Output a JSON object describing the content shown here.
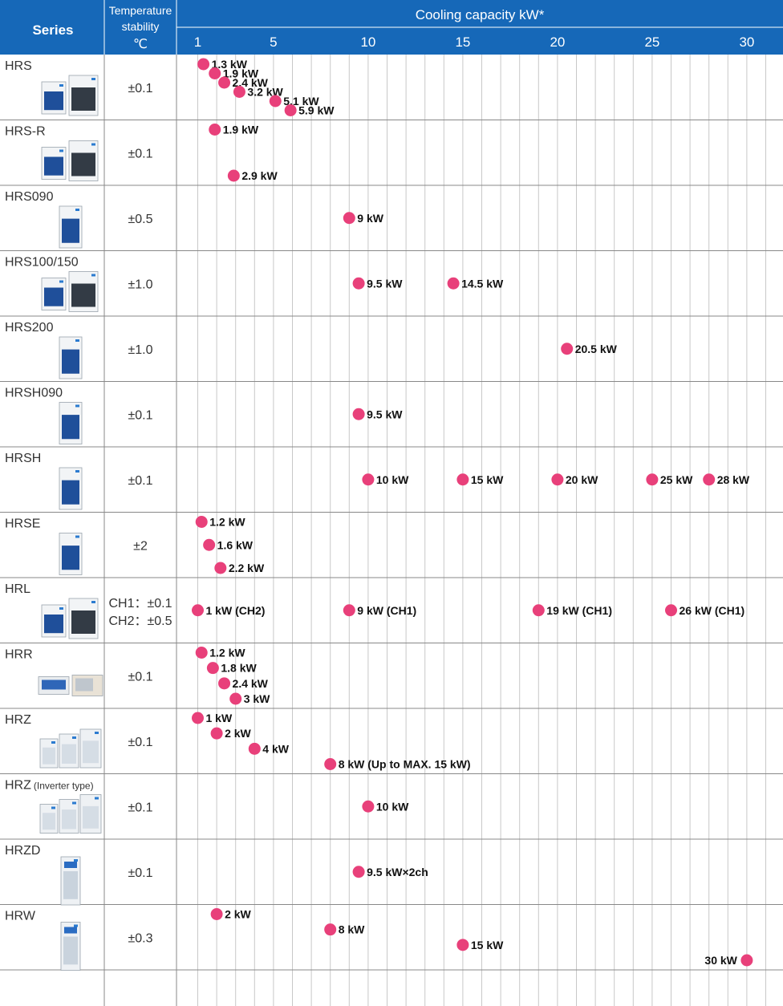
{
  "header": {
    "series_label": "Series",
    "stability_label_lines": [
      "Temperature",
      "stability",
      "℃"
    ],
    "capacity_label": "Cooling capacity   kW*"
  },
  "colors": {
    "header_bg": "#1668b8",
    "marker": "#e8407a",
    "grid": "#c8c8c8",
    "row_border": "#888888"
  },
  "chart_data": {
    "type": "scatter",
    "title": "Cooling capacity   kW*",
    "xlabel": "Cooling capacity   kW*",
    "ylabel": "Series",
    "x_ticks": [
      "1",
      "5",
      "10",
      "15",
      "20",
      "25",
      "30"
    ],
    "x_tick_values": [
      1,
      5,
      10,
      15,
      20,
      25,
      30
    ],
    "xlim": [
      0,
      32
    ],
    "rows": [
      {
        "series": "HRS",
        "stability": [
          "±0.1"
        ],
        "icon": "chiller-units-pair-icon",
        "points": [
          {
            "x": 1.3,
            "label": "1.3 kW"
          },
          {
            "x": 1.9,
            "label": "1.9 kW"
          },
          {
            "x": 2.4,
            "label": "2.4 kW"
          },
          {
            "x": 3.2,
            "label": "3.2 kW"
          },
          {
            "x": 5.1,
            "label": "5.1 kW"
          },
          {
            "x": 5.9,
            "label": "5.9 kW"
          }
        ]
      },
      {
        "series": "HRS-R",
        "stability": [
          "±0.1"
        ],
        "icon": "chiller-units-pair-icon",
        "points": [
          {
            "x": 1.9,
            "label": "1.9 kW"
          },
          {
            "x": 2.9,
            "label": "2.9 kW"
          }
        ]
      },
      {
        "series": "HRS090",
        "stability": [
          "±0.5"
        ],
        "icon": "chiller-unit-icon",
        "points": [
          {
            "x": 9,
            "label": "9 kW"
          }
        ]
      },
      {
        "series": "HRS100/150",
        "stability": [
          "±1.0"
        ],
        "icon": "chiller-units-pair-icon",
        "points": [
          {
            "x": 9.5,
            "label": "9.5 kW"
          },
          {
            "x": 14.5,
            "label": "14.5 kW"
          }
        ]
      },
      {
        "series": "HRS200",
        "stability": [
          "±1.0"
        ],
        "icon": "chiller-unit-icon",
        "points": [
          {
            "x": 20.5,
            "label": "20.5 kW"
          }
        ]
      },
      {
        "series": "HRSH090",
        "stability": [
          "±0.1"
        ],
        "icon": "chiller-unit-icon",
        "points": [
          {
            "x": 9.5,
            "label": "9.5 kW"
          }
        ]
      },
      {
        "series": "HRSH",
        "stability": [
          "±0.1"
        ],
        "icon": "chiller-unit-icon",
        "points": [
          {
            "x": 10,
            "label": "10 kW"
          },
          {
            "x": 15,
            "label": "15 kW"
          },
          {
            "x": 20,
            "label": "20 kW"
          },
          {
            "x": 25,
            "label": "25 kW"
          },
          {
            "x": 28,
            "label": "28 kW"
          }
        ]
      },
      {
        "series": "HRSE",
        "stability": [
          "±2"
        ],
        "icon": "chiller-unit-icon",
        "points": [
          {
            "x": 1.2,
            "label": "1.2 kW"
          },
          {
            "x": 1.6,
            "label": "1.6 kW"
          },
          {
            "x": 2.2,
            "label": "2.2 kW"
          }
        ]
      },
      {
        "series": "HRL",
        "stability": [
          "CH1：±0.1",
          "CH2：±0.5"
        ],
        "icon": "chiller-units-pair-icon",
        "points": [
          {
            "x": 1,
            "label": "1 kW (CH2)"
          },
          {
            "x": 9,
            "label": "9 kW (CH1)"
          },
          {
            "x": 19,
            "label": "19 kW (CH1)"
          },
          {
            "x": 26,
            "label": "26 kW (CH1)"
          }
        ]
      },
      {
        "series": "HRR",
        "stability": [
          "±0.1"
        ],
        "icon": "rack-chiller-units-icon",
        "points": [
          {
            "x": 1.2,
            "label": "1.2 kW"
          },
          {
            "x": 1.8,
            "label": "1.8  kW"
          },
          {
            "x": 2.4,
            "label": "2.4 kW"
          },
          {
            "x": 3,
            "label": "3 kW"
          }
        ]
      },
      {
        "series": "HRZ",
        "stability": [
          "±0.1"
        ],
        "icon": "chiller-units-group-icon",
        "points": [
          {
            "x": 1,
            "label": "1 kW"
          },
          {
            "x": 2,
            "label": "2 kW"
          },
          {
            "x": 4,
            "label": "4 kW"
          },
          {
            "x": 8,
            "label": "8 kW (Up to MAX. 15 kW)"
          }
        ]
      },
      {
        "series": "HRZ",
        "series_note": "(Inverter type)",
        "stability": [
          "±0.1"
        ],
        "icon": "chiller-units-group-icon",
        "points": [
          {
            "x": 10,
            "label": "10 kW"
          }
        ]
      },
      {
        "series": "HRZD",
        "stability": [
          "±0.1"
        ],
        "icon": "tall-chiller-unit-icon",
        "points": [
          {
            "x": 9.5,
            "label": "9.5 kW×2ch"
          }
        ]
      },
      {
        "series": "HRW",
        "stability": [
          "±0.3"
        ],
        "icon": "tall-chiller-unit-icon",
        "points": [
          {
            "x": 2,
            "label": "2 kW"
          },
          {
            "x": 8,
            "label": "8 kW"
          },
          {
            "x": 15,
            "label": "15 kW"
          },
          {
            "x": 30,
            "label": "30 kW"
          }
        ]
      }
    ]
  }
}
